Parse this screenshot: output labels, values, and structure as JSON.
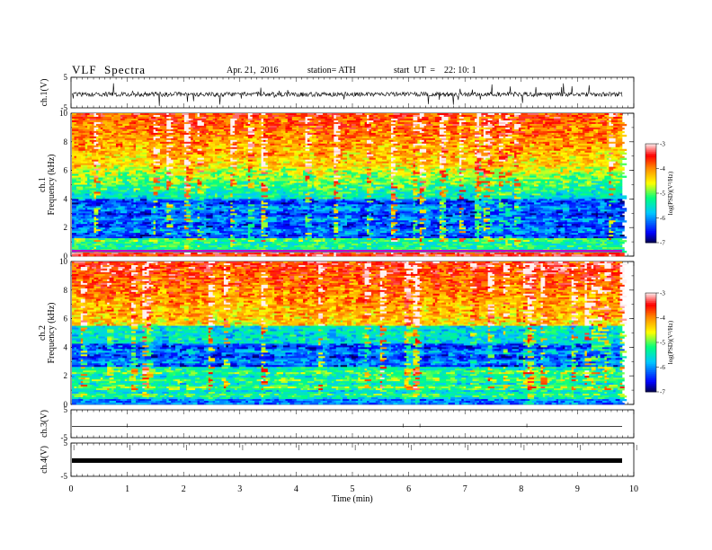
{
  "header": {
    "title": "VLF  Spectra",
    "date": "Apr. 21,  2016",
    "station": "station= ATH",
    "start": "start  UT  =    22: 10: 1"
  },
  "chart_data": {
    "type": "heatmap",
    "xlabel": "Time  (min)",
    "xlim": [
      0,
      10
    ],
    "x_ticks": [
      "0",
      "1",
      "2",
      "3",
      "4",
      "5",
      "6",
      "7",
      "8",
      "9",
      "10"
    ],
    "panels": [
      {
        "id": "ch1-wave",
        "ylabel": "ch.1(V)",
        "ylim": [
          -5,
          5
        ],
        "y_ticks": [
          "5",
          "-5"
        ],
        "kind": "waveform",
        "description_level": "noisy, mean ~0, amplitude ~1 V"
      },
      {
        "id": "ch1-spec",
        "ylabel_line1": "ch.1",
        "ylabel_line2": "Frequency  (kHz)",
        "ylim": [
          0,
          10
        ],
        "y_ticks": [
          "0",
          "2",
          "4",
          "6",
          "8",
          "10"
        ],
        "kind": "spectrogram"
      },
      {
        "id": "ch2-spec",
        "ylabel_line1": "ch.2",
        "ylabel_line2": "Frequency  (kHz)",
        "ylim": [
          0,
          10
        ],
        "y_ticks": [
          "0",
          "2",
          "4",
          "6",
          "8",
          "10"
        ],
        "kind": "spectrogram"
      },
      {
        "id": "ch3-wave",
        "ylabel": "ch.3(V)",
        "ylim": [
          -5,
          5
        ],
        "y_ticks": [
          "5",
          "-5"
        ],
        "kind": "waveform"
      },
      {
        "id": "ch4-wave",
        "ylabel": "ch.4(V)",
        "ylim": [
          -5,
          5
        ],
        "y_ticks": [
          "5",
          "-5"
        ],
        "kind": "waveform"
      }
    ],
    "colorbar": {
      "label": "log(PSD)(V²/Hz)",
      "range": [
        -7,
        -3
      ],
      "ticks": [
        "-3",
        "-4",
        "-5",
        "-6",
        "-7"
      ],
      "colors": [
        "#000066",
        "#0000ff",
        "#00c8ff",
        "#00ff80",
        "#ffff00",
        "#ff8000",
        "#ff0000",
        "#ffffff"
      ]
    }
  }
}
